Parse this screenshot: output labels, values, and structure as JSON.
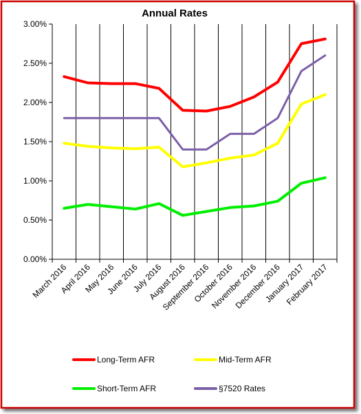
{
  "chart_data": {
    "type": "line",
    "title": "Annual Rates",
    "categories": [
      "March 2016",
      "April 2016",
      "May 2016",
      "June 2016",
      "July 2016",
      "August 2016",
      "September 2016",
      "October 2016",
      "November 2016",
      "December 2016",
      "January 2017",
      "February 2017"
    ],
    "ylim": [
      0,
      3
    ],
    "yticks": [
      "0.00%",
      "0.50%",
      "1.00%",
      "1.50%",
      "2.00%",
      "2.50%",
      "3.00%"
    ],
    "grid": "vertical",
    "legend_position": "bottom",
    "series": [
      {
        "name": "Long-Term AFR",
        "color": "#ff0000",
        "values": [
          2.33,
          2.25,
          2.24,
          2.24,
          2.18,
          1.9,
          1.89,
          1.95,
          2.07,
          2.26,
          2.75,
          2.81
        ]
      },
      {
        "name": "Mid-Term AFR",
        "color": "#ffff00",
        "values": [
          1.48,
          1.44,
          1.42,
          1.41,
          1.43,
          1.18,
          1.23,
          1.29,
          1.33,
          1.48,
          1.98,
          2.1
        ]
      },
      {
        "name": "Short-Term AFR",
        "color": "#00ee00",
        "values": [
          0.65,
          0.7,
          0.67,
          0.64,
          0.71,
          0.56,
          0.61,
          0.66,
          0.68,
          0.74,
          0.97,
          1.04
        ]
      },
      {
        "name": "§7520 Rates",
        "color": "#7b5fa8",
        "values": [
          1.8,
          1.8,
          1.8,
          1.8,
          1.8,
          1.4,
          1.4,
          1.6,
          1.6,
          1.8,
          2.4,
          2.6
        ]
      }
    ]
  }
}
